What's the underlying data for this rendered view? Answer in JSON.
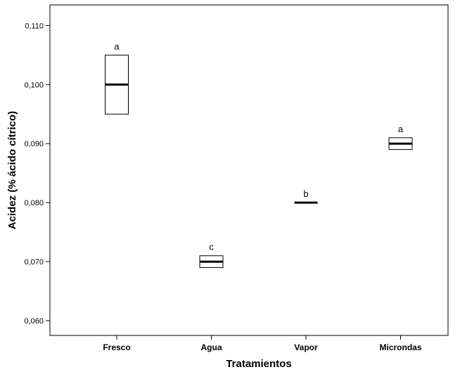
{
  "chart_data": {
    "type": "box",
    "xlabel": "Tratamientos",
    "ylabel": "Acidez (% ácido cítrico)",
    "ylim": [
      0.0575,
      0.1135
    ],
    "yticks": [
      0.06,
      0.07,
      0.08,
      0.09,
      0.1,
      0.11
    ],
    "ytick_labels": [
      "0,060",
      "0,070",
      "0,080",
      "0,090",
      "0,100",
      "0,110"
    ],
    "grid": false,
    "categories": [
      "Fresco",
      "Agua",
      "Vapor",
      "Microndas"
    ],
    "boxes": [
      {
        "category": "Fresco",
        "q1": 0.095,
        "median": 0.1,
        "q3": 0.105,
        "letter": "a"
      },
      {
        "category": "Agua",
        "q1": 0.069,
        "median": 0.07,
        "q3": 0.071,
        "letter": "c"
      },
      {
        "category": "Vapor",
        "q1": 0.08,
        "median": 0.08,
        "q3": 0.08,
        "letter": "b"
      },
      {
        "category": "Microndas",
        "q1": 0.089,
        "median": 0.09,
        "q3": 0.091,
        "letter": "a"
      }
    ]
  }
}
